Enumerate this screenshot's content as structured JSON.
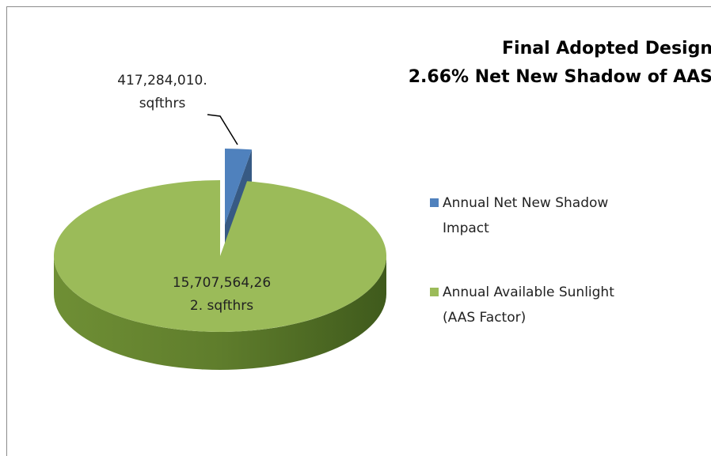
{
  "chart_data": {
    "type": "pie",
    "title": "Final Adopted Design",
    "subtitle": "2.66% Net New Shadow of AAS",
    "categories": [
      "Annual Net New Shadow Impact",
      "Annual Available Sunlight (AAS Factor)"
    ],
    "values": [
      417284010,
      15707564262
    ],
    "value_labels": [
      "417,284,010. sqfthrs",
      "15,707,564,262. sqfthrs"
    ],
    "colors": [
      "#4f81bd",
      "#9bbb59"
    ],
    "legend": "right"
  }
}
